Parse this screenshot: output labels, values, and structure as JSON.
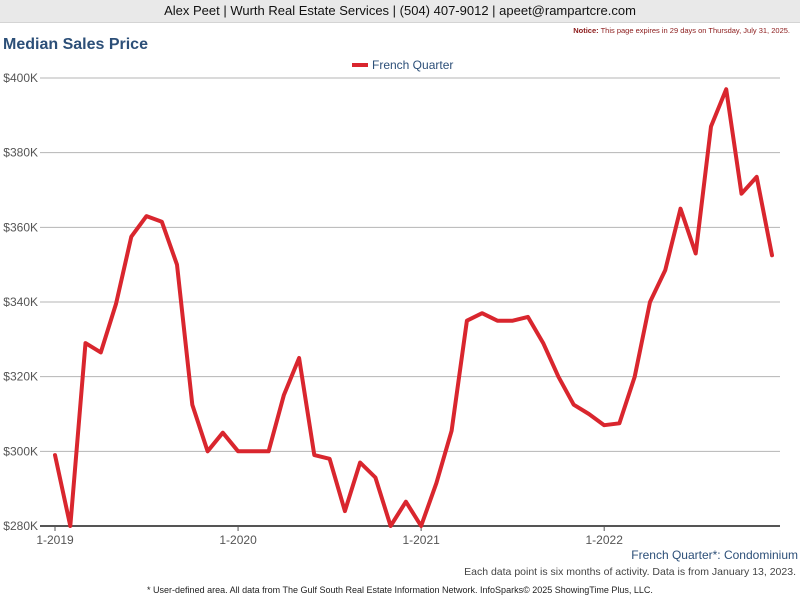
{
  "header": {
    "contact": "Alex Peet | Wurth Real Estate Services | (504) 407-9012 | apeet@rampartcre.com"
  },
  "notice": {
    "label": "Notice:",
    "text": " This page expires in 29 days on Thursday, July 31, 2025."
  },
  "chart_data": {
    "type": "line",
    "title": "Median Sales Price",
    "subtitle": "French Quarter*: Condominium",
    "note": "Each data point is six months of activity. Data is from January 13, 2023.",
    "footer": "* User-defined area. All data from The Gulf South Real Estate Information Network. InfoSparks© 2025 ShowingTime Plus, LLC.",
    "legend_position": "top-center",
    "ylim": [
      280000,
      400000
    ],
    "yticks": [
      280000,
      300000,
      320000,
      340000,
      360000,
      380000,
      400000
    ],
    "ytick_labels": [
      "$280K",
      "$300K",
      "$320K",
      "$340K",
      "$360K",
      "$380K",
      "$400K"
    ],
    "xticks": [
      "1-2019",
      "1-2020",
      "1-2021",
      "1-2022"
    ],
    "x": [
      "2019-01",
      "2019-02",
      "2019-03",
      "2019-04",
      "2019-05",
      "2019-06",
      "2019-07",
      "2019-08",
      "2019-09",
      "2019-10",
      "2019-11",
      "2019-12",
      "2020-01",
      "2020-02",
      "2020-03",
      "2020-04",
      "2020-05",
      "2020-06",
      "2020-07",
      "2020-08",
      "2020-09",
      "2020-10",
      "2020-11",
      "2020-12",
      "2021-01",
      "2021-02",
      "2021-03",
      "2021-04",
      "2021-05",
      "2021-06",
      "2021-07",
      "2021-08",
      "2021-09",
      "2021-10",
      "2021-11",
      "2021-12",
      "2022-01",
      "2022-02",
      "2022-03",
      "2022-04",
      "2022-05",
      "2022-06",
      "2022-07",
      "2022-08",
      "2022-09",
      "2022-10",
      "2022-11",
      "2022-12"
    ],
    "series": [
      {
        "name": "French Quarter",
        "color": "#d9262e",
        "values": [
          299000,
          280000,
          329000,
          326500,
          339500,
          357500,
          363000,
          361500,
          350000,
          312500,
          300000,
          305000,
          300000,
          300000,
          300000,
          315000,
          325000,
          299000,
          298000,
          284000,
          297000,
          293000,
          280000,
          286500,
          280000,
          291500,
          305500,
          335000,
          337000,
          335000,
          335000,
          336000,
          329000,
          320000,
          312500,
          310000,
          307000,
          307500,
          320000,
          340000,
          348500,
          365000,
          353000,
          387000,
          397000,
          369000,
          373500,
          352500
        ]
      }
    ]
  }
}
